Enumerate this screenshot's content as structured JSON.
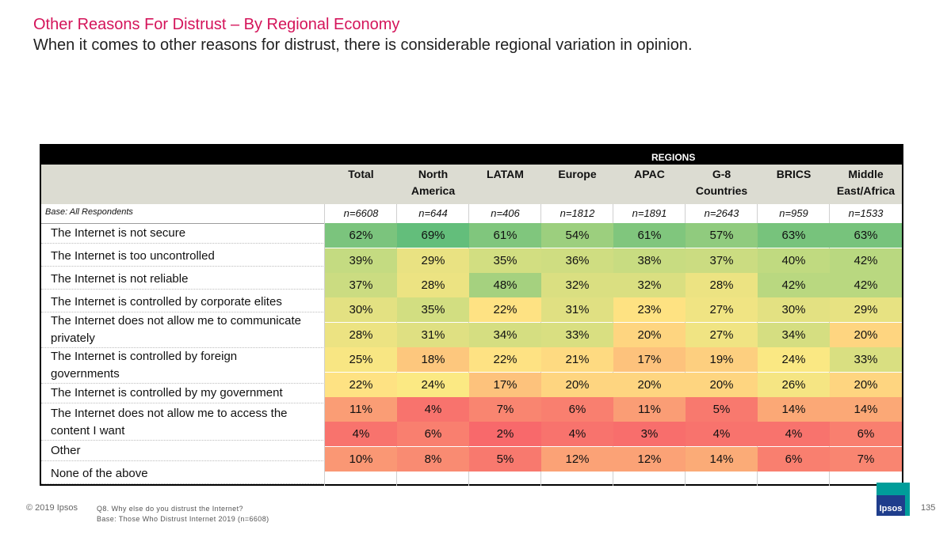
{
  "title": "Other Reasons For Distrust – By Regional Economy",
  "subtitle": "When it comes to other reasons for distrust, there is considerable regional variation in opinion.",
  "table": {
    "regions_label": "REGIONS",
    "columns": [
      {
        "line1": "Total",
        "line2": ""
      },
      {
        "line1": "North",
        "line2": "America"
      },
      {
        "line1": "LATAM",
        "line2": ""
      },
      {
        "line1": "Europe",
        "line2": ""
      },
      {
        "line1": "APAC",
        "line2": ""
      },
      {
        "line1": "G-8",
        "line2": "Countries"
      },
      {
        "line1": "BRICS",
        "line2": ""
      },
      {
        "line1": "Middle",
        "line2": "East/Africa"
      }
    ],
    "base_label": "Base: All Respondents",
    "n_values": [
      "n=6608",
      "n=644",
      "n=406",
      "n=1812",
      "n=1891",
      "n=2643",
      "n=959",
      "n=1533"
    ],
    "row_labels": [
      {
        "line1": "The Internet is not secure",
        "line2": ""
      },
      {
        "line1": "The Internet is too uncontrolled",
        "line2": ""
      },
      {
        "line1": "The Internet is not reliable",
        "line2": ""
      },
      {
        "line1": "The Internet is controlled by corporate elites",
        "line2": ""
      },
      {
        "line1": "The Internet does not allow me to communicate",
        "line2": "privately"
      },
      {
        "line1": "The Internet is controlled by foreign",
        "line2": "governments"
      },
      {
        "line1": "The Internet is controlled by my government",
        "line2": ""
      },
      {
        "line1": "The Internet does not allow me to access the",
        "line2": "content I want"
      },
      {
        "line1": "Other",
        "line2": ""
      },
      {
        "line1": "None of the above",
        "line2": ""
      }
    ],
    "cells": [
      [
        "62%",
        "69%",
        "61%",
        "54%",
        "61%",
        "57%",
        "63%",
        "63%"
      ],
      [
        "39%",
        "29%",
        "35%",
        "36%",
        "38%",
        "37%",
        "40%",
        "42%"
      ],
      [
        "37%",
        "28%",
        "48%",
        "32%",
        "32%",
        "28%",
        "42%",
        "42%"
      ],
      [
        "30%",
        "35%",
        "22%",
        "31%",
        "23%",
        "27%",
        "30%",
        "29%"
      ],
      [
        "28%",
        "31%",
        "34%",
        "33%",
        "20%",
        "27%",
        "34%",
        "20%"
      ],
      [
        "25%",
        "18%",
        "22%",
        "21%",
        "17%",
        "19%",
        "24%",
        "33%"
      ],
      [
        "22%",
        "24%",
        "17%",
        "20%",
        "20%",
        "20%",
        "26%",
        "20%"
      ],
      [
        "11%",
        "4%",
        "7%",
        "6%",
        "11%",
        "5%",
        "14%",
        "14%"
      ],
      [
        "4%",
        "6%",
        "2%",
        "4%",
        "3%",
        "4%",
        "4%",
        "6%"
      ],
      [
        "10%",
        "8%",
        "5%",
        "12%",
        "12%",
        "14%",
        "6%",
        "7%"
      ]
    ],
    "cell_colors": [
      [
        "#7bc47d",
        "#63be7b",
        "#80c67d",
        "#9ccf7e",
        "#80c67d",
        "#90cb7e",
        "#77c37c",
        "#77c37c"
      ],
      [
        "#c4db81",
        "#e9e282",
        "#d2de81",
        "#cfdd81",
        "#c8dc81",
        "#cbdc81",
        "#c0da80",
        "#b9d880"
      ],
      [
        "#cbdc81",
        "#ece382",
        "#a5d17f",
        "#dadf81",
        "#dadf81",
        "#ece382",
        "#b9d880",
        "#b9d880"
      ],
      [
        "#e3e182",
        "#d2de81",
        "#fee283",
        "#e0e082",
        "#fee282",
        "#f0e483",
        "#e3e182",
        "#e7e282"
      ],
      [
        "#ece382",
        "#dfe082",
        "#d5de81",
        "#d9df81",
        "#fed580",
        "#f0e483",
        "#d5de81",
        "#fed580"
      ],
      [
        "#f8e683",
        "#fdc77d",
        "#fee283",
        "#feda81",
        "#fdc27c",
        "#fdcf7f",
        "#fae883",
        "#d9df81"
      ],
      [
        "#fee283",
        "#fbe983",
        "#fdc27c",
        "#fed580",
        "#fed580",
        "#fed580",
        "#f5e583",
        "#fed580"
      ],
      [
        "#fa9d75",
        "#f8736d",
        "#f98570",
        "#f97f6f",
        "#fa9d75",
        "#f8796e",
        "#fba876",
        "#fba876"
      ],
      [
        "#f8736d",
        "#f97f6f",
        "#f8696b",
        "#f8736d",
        "#f86e6c",
        "#f8736d",
        "#f8736d",
        "#f97f6f"
      ],
      [
        "#fa9774",
        "#f98b72",
        "#f8796e",
        "#fba276",
        "#fba276",
        "#fbab77",
        "#f97f6f",
        "#f98571"
      ]
    ]
  },
  "footer": {
    "copyright": "© 2019 Ipsos",
    "question": "Q8.  Why else do you distrust the Internet?",
    "base": "Base: Those Who Distrust Internet 2019 (n=6608)",
    "logo_text": "Ipsos",
    "page_number": "135",
    "logo_color_top": "#009d9a",
    "logo_color_bottom": "#1f3d8c"
  }
}
